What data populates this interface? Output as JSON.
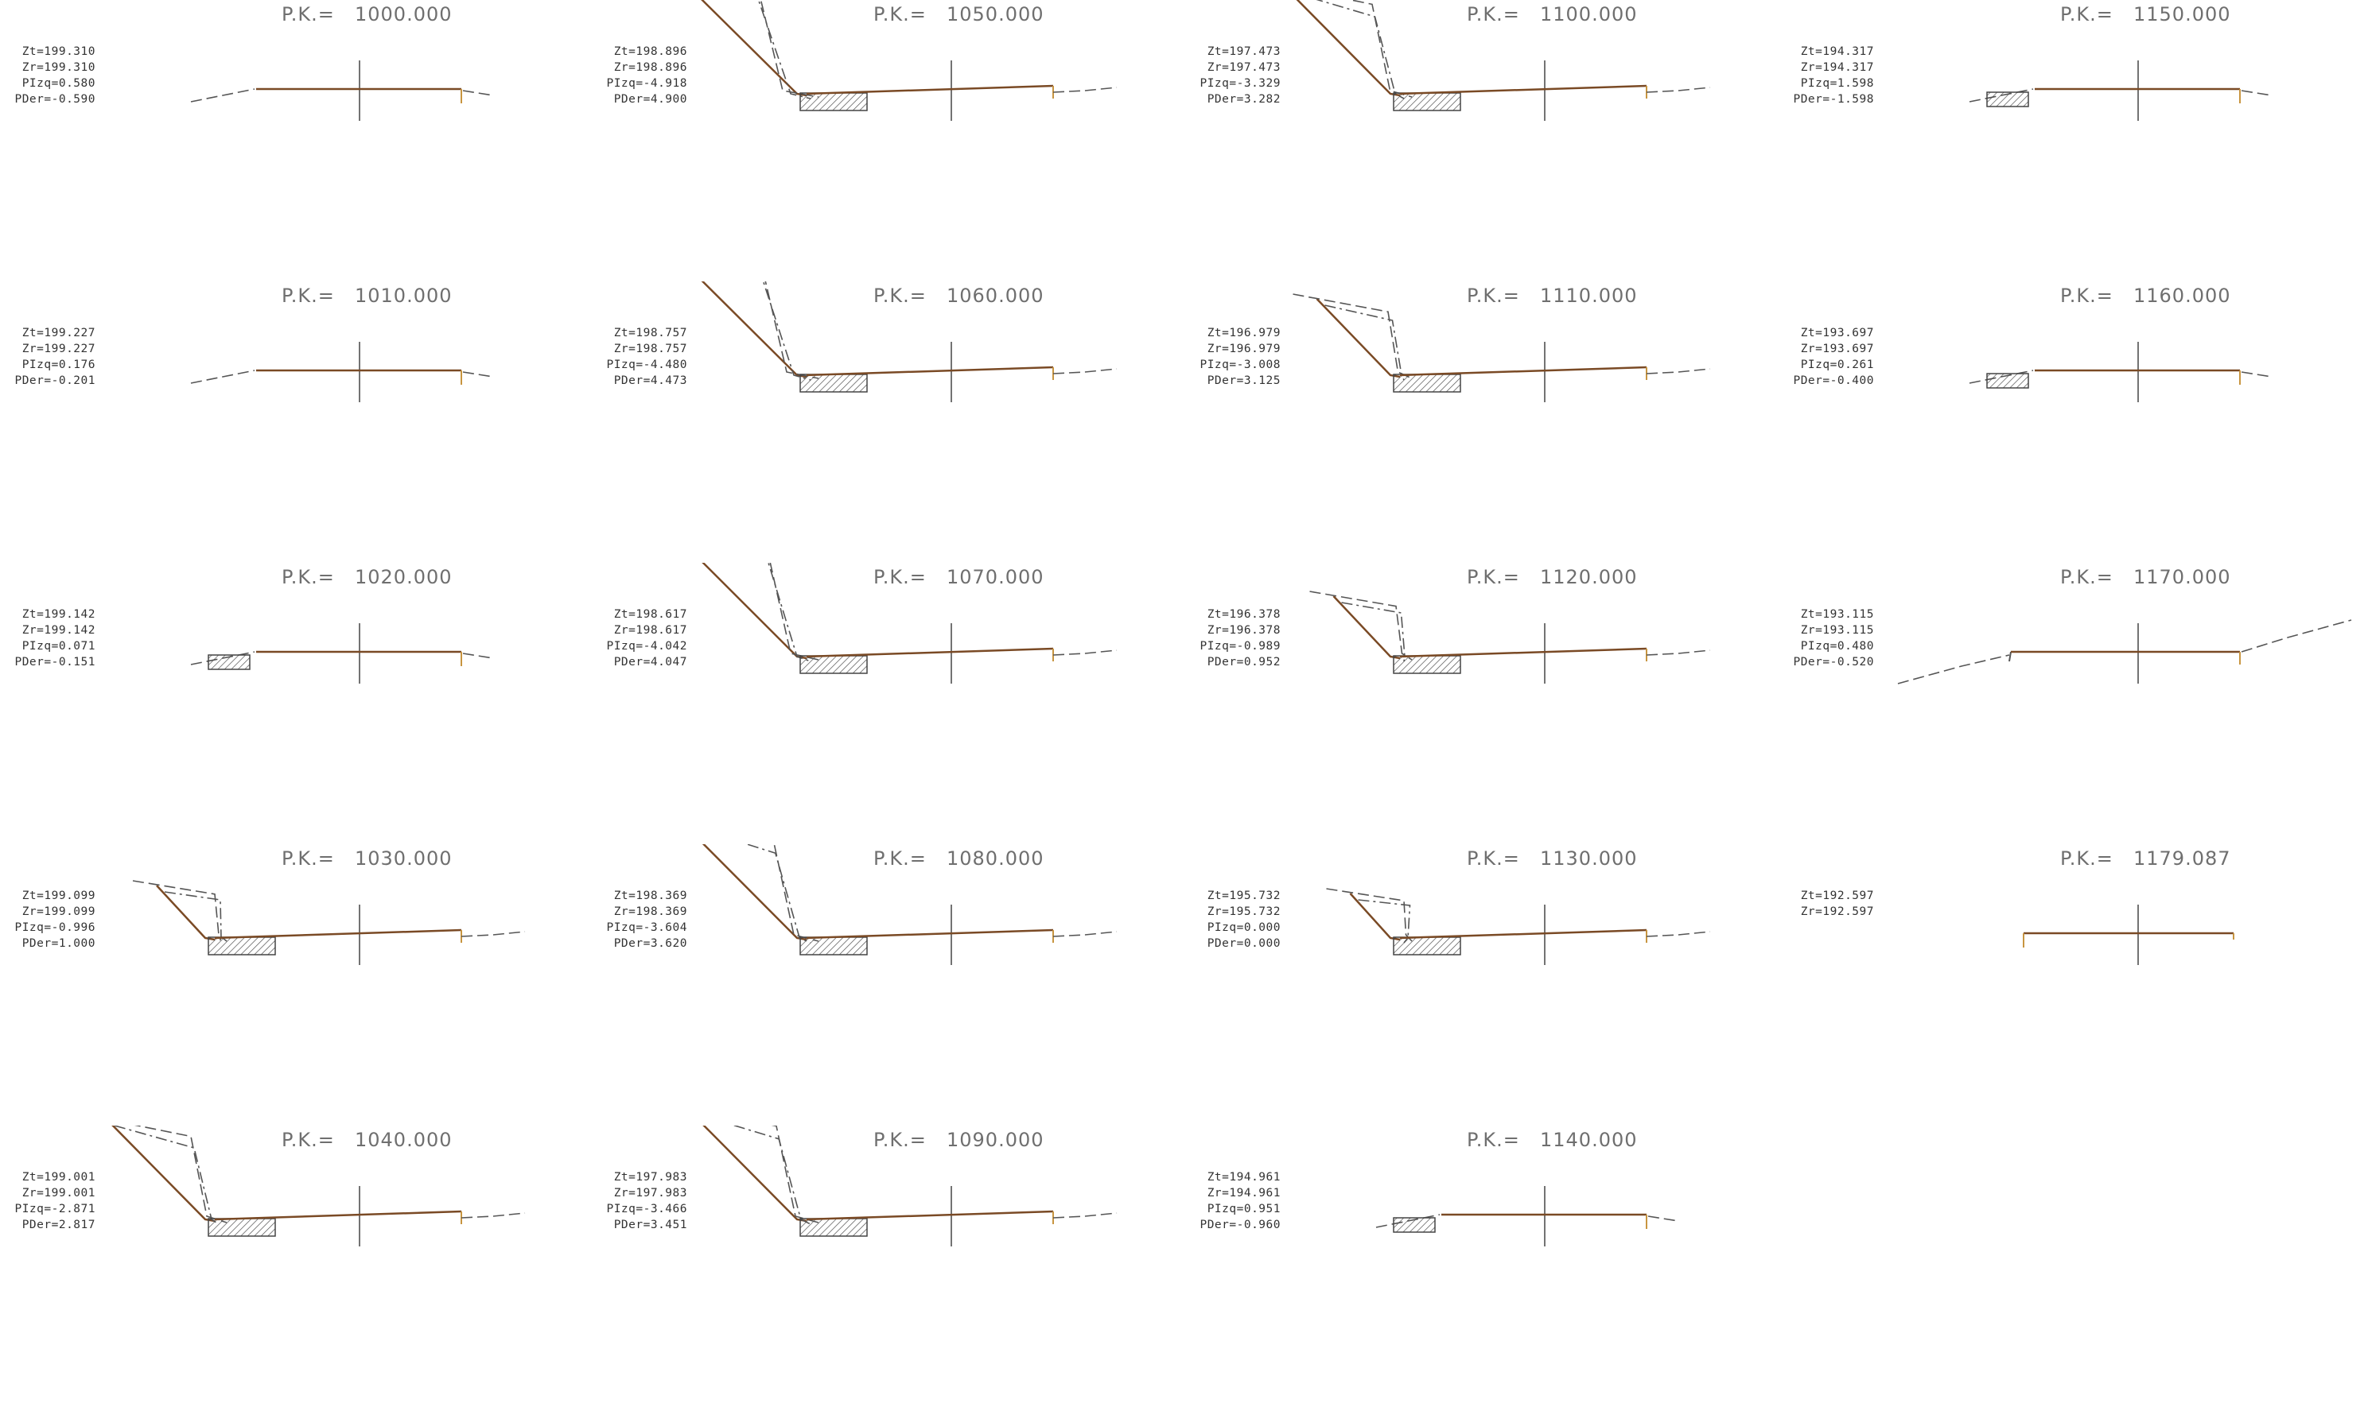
{
  "drawing": {
    "pk_prefix": "P.K.=",
    "colors": {
      "terrain": "#555555",
      "road": "#7a4a25",
      "curb": "#c89540",
      "hatch": "#444444",
      "axis": "#444444",
      "text": "#333333",
      "title": "#6f6f6f"
    },
    "sections": [
      {
        "pk": "1000.000",
        "zt": "Zt=199.310",
        "zr": "Zr=199.310",
        "pizq": "PIzq=0.580",
        "pder": "PDer=-0.590",
        "variant": "flat",
        "scale": 0
      },
      {
        "pk": "1010.000",
        "zt": "Zt=199.227",
        "zr": "Zr=199.227",
        "pizq": "PIzq=0.176",
        "pder": "PDer=-0.201",
        "variant": "flat",
        "scale": 0
      },
      {
        "pk": "1020.000",
        "zt": "Zt=199.142",
        "zr": "Zr=199.142",
        "pizq": "PIzq=0.071",
        "pder": "PDer=-0.151",
        "variant": "flatditch",
        "scale": 0
      },
      {
        "pk": "1030.000",
        "zt": "Zt=199.099",
        "zr": "Zr=199.099",
        "pizq": "PIzq=-0.996",
        "pder": "PDer=1.000",
        "variant": "cut",
        "scale": 0.3
      },
      {
        "pk": "1040.000",
        "zt": "Zt=199.001",
        "zr": "Zr=199.001",
        "pizq": "PIzq=-2.871",
        "pder": "PDer=2.817",
        "variant": "cut",
        "scale": 0.6
      },
      {
        "pk": "1050.000",
        "zt": "Zt=198.896",
        "zr": "Zr=198.896",
        "pizq": "PIzq=-4.918",
        "pder": "PDer=4.900",
        "variant": "cut",
        "scale": 1.0
      },
      {
        "pk": "1060.000",
        "zt": "Zt=198.757",
        "zr": "Zr=198.757",
        "pizq": "PIzq=-4.480",
        "pder": "PDer=4.473",
        "variant": "cut",
        "scale": 0.9
      },
      {
        "pk": "1070.000",
        "zt": "Zt=198.617",
        "zr": "Zr=198.617",
        "pizq": "PIzq=-4.042",
        "pder": "PDer=4.047",
        "variant": "cut",
        "scale": 0.8
      },
      {
        "pk": "1080.000",
        "zt": "Zt=198.369",
        "zr": "Zr=198.369",
        "pizq": "PIzq=-3.604",
        "pder": "PDer=3.620",
        "variant": "cut",
        "scale": 0.72
      },
      {
        "pk": "1090.000",
        "zt": "Zt=197.983",
        "zr": "Zr=197.983",
        "pizq": "PIzq=-3.466",
        "pder": "PDer=3.451",
        "variant": "cut",
        "scale": 0.68
      },
      {
        "pk": "1100.000",
        "zt": "Zt=197.473",
        "zr": "Zr=197.473",
        "pizq": "PIzq=-3.329",
        "pder": "PDer=3.282",
        "variant": "cut",
        "scale": 0.65
      },
      {
        "pk": "1110.000",
        "zt": "Zt=196.979",
        "zr": "Zr=196.979",
        "pizq": "PIzq=-3.008",
        "pder": "PDer=3.125",
        "variant": "cut",
        "scale": 0.45
      },
      {
        "pk": "1120.000",
        "zt": "Zt=196.378",
        "zr": "Zr=196.378",
        "pizq": "PIzq=-0.989",
        "pder": "PDer=0.952",
        "variant": "cut",
        "scale": 0.35
      },
      {
        "pk": "1130.000",
        "zt": "Zt=195.732",
        "zr": "Zr=195.732",
        "pizq": "PIzq=0.000",
        "pder": "PDer=0.000",
        "variant": "cut",
        "scale": 0.25
      },
      {
        "pk": "1140.000",
        "zt": "Zt=194.961",
        "zr": "Zr=194.961",
        "pizq": "PIzq=0.951",
        "pder": "PDer=-0.960",
        "variant": "flatditch",
        "scale": 0
      },
      {
        "pk": "1150.000",
        "zt": "Zt=194.317",
        "zr": "Zr=194.317",
        "pizq": "PIzq=1.598",
        "pder": "PDer=-1.598",
        "variant": "flatditch",
        "scale": 0
      },
      {
        "pk": "1160.000",
        "zt": "Zt=193.697",
        "zr": "Zr=193.697",
        "pizq": "PIzq=0.261",
        "pder": "PDer=-0.400",
        "variant": "flatditch",
        "scale": 0
      },
      {
        "pk": "1170.000",
        "zt": "Zt=193.115",
        "zr": "Zr=193.115",
        "pizq": "PIzq=0.480",
        "pder": "PDer=-0.520",
        "variant": "fill",
        "scale": 0
      },
      {
        "pk": "1179.087",
        "zt": "Zt=192.597",
        "zr": "Zr=192.597",
        "pizq": "",
        "pder": "",
        "variant": "end",
        "scale": 0
      }
    ]
  }
}
